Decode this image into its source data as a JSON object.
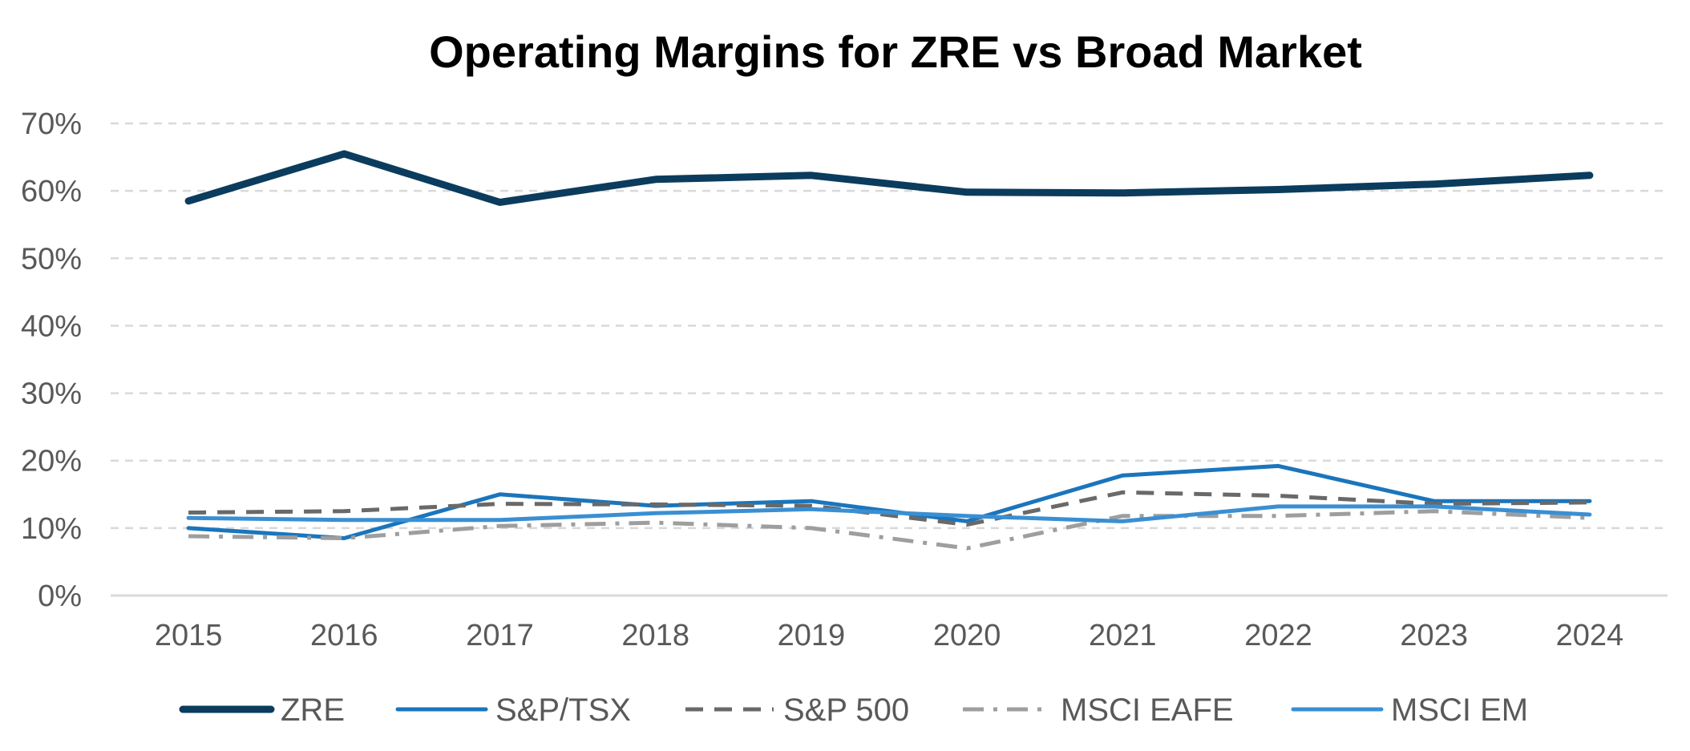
{
  "chart_data": {
    "type": "line",
    "title": "Operating Margins for ZRE vs Broad Market",
    "xlabel": "",
    "ylabel": "",
    "categories": [
      "2015",
      "2016",
      "2017",
      "2018",
      "2019",
      "2020",
      "2021",
      "2022",
      "2023",
      "2024"
    ],
    "y_ticks": [
      "0%",
      "10%",
      "20%",
      "30%",
      "40%",
      "50%",
      "60%",
      "70%"
    ],
    "ylim": [
      0,
      70
    ],
    "grid": true,
    "legend_position": "bottom",
    "series": [
      {
        "name": "ZRE",
        "color": "#0b3c5d",
        "style": "solid",
        "width": 9,
        "values": [
          58.5,
          65.5,
          58.3,
          61.7,
          62.3,
          59.8,
          59.7,
          60.2,
          61.0,
          62.3
        ]
      },
      {
        "name": "S&P/TSX",
        "color": "#1a75bc",
        "style": "solid",
        "width": 5,
        "values": [
          10.0,
          8.5,
          15.0,
          13.3,
          14.0,
          11.0,
          17.8,
          19.2,
          14.0,
          14.0
        ]
      },
      {
        "name": "S&P 500",
        "color": "#696969",
        "style": "dash",
        "width": 5,
        "values": [
          12.3,
          12.5,
          13.6,
          13.5,
          13.3,
          10.5,
          15.3,
          14.8,
          13.6,
          13.8
        ]
      },
      {
        "name": "MSCI EAFE",
        "color": "#9e9e9e",
        "style": "dashdot",
        "width": 5,
        "values": [
          8.8,
          8.5,
          10.3,
          10.8,
          10.0,
          7.0,
          11.8,
          11.8,
          12.5,
          11.5
        ]
      },
      {
        "name": "MSCI EM",
        "color": "#3a8fd3",
        "style": "solid",
        "width": 5,
        "values": [
          11.5,
          11.2,
          11.2,
          12.2,
          12.8,
          11.8,
          11.0,
          13.2,
          13.2,
          12.0
        ]
      }
    ]
  }
}
